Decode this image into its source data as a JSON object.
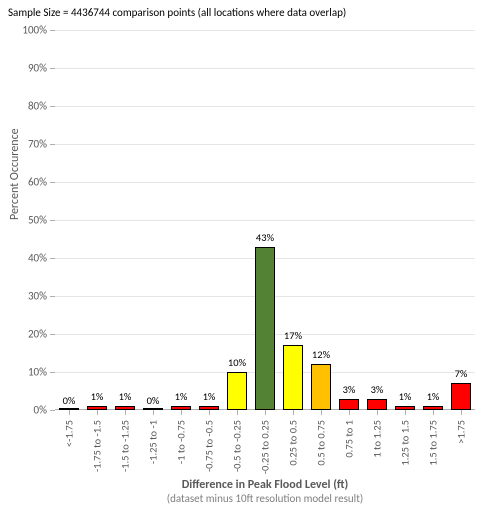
{
  "title": "Sample Size = 4436744 comparison points (all locations where data overlap)",
  "chart": {
    "type": "bar",
    "ylabel": "Percent Occurence",
    "xlabel_main": "Difference in Peak Flood Level (ft)",
    "xlabel_sub": "(dataset minus 10ft resolution model result)",
    "ylim": [
      0,
      100
    ],
    "ytick_step": 10,
    "ytick_suffix": "%",
    "grid_color": "#e6e6e6",
    "axis_color": "#b0b0b0",
    "background_color": "#ffffff",
    "label_fontsize": 11,
    "title_fontsize": 11,
    "bar_gap_ratio": 0.3,
    "categories": [
      "<-1.75",
      "-1.75 to -1.5",
      "-1.5 to -1.25",
      "-1.25 to -1",
      "-1 to -0.75",
      "-0.75 to -0.5",
      "-0.5 to -0.25",
      "-0.25 to 0.25",
      "0.25 to 0.5",
      "0.5 to 0.75",
      "0.75 to 1",
      "1 to 1.25",
      "1.25 to 1.5",
      "1.5 to 1.75",
      ">1.75"
    ],
    "values": [
      0,
      1,
      1,
      0,
      1,
      1,
      10,
      43,
      17,
      12,
      3,
      3,
      1,
      1,
      7
    ],
    "bar_labels": [
      "0%",
      "1%",
      "1%",
      "0%",
      "1%",
      "1%",
      "10%",
      "43%",
      "17%",
      "12%",
      "3%",
      "3%",
      "1%",
      "1%",
      "7%"
    ],
    "bar_colors": [
      "#ff0000",
      "#ff0000",
      "#ff0000",
      "#ff0000",
      "#ff0000",
      "#ff0000",
      "#ffff00",
      "#548235",
      "#ffff00",
      "#ffc000",
      "#ff0000",
      "#ff0000",
      "#ff0000",
      "#ff0000",
      "#ff0000"
    ],
    "bar_border_color": "#000000"
  }
}
